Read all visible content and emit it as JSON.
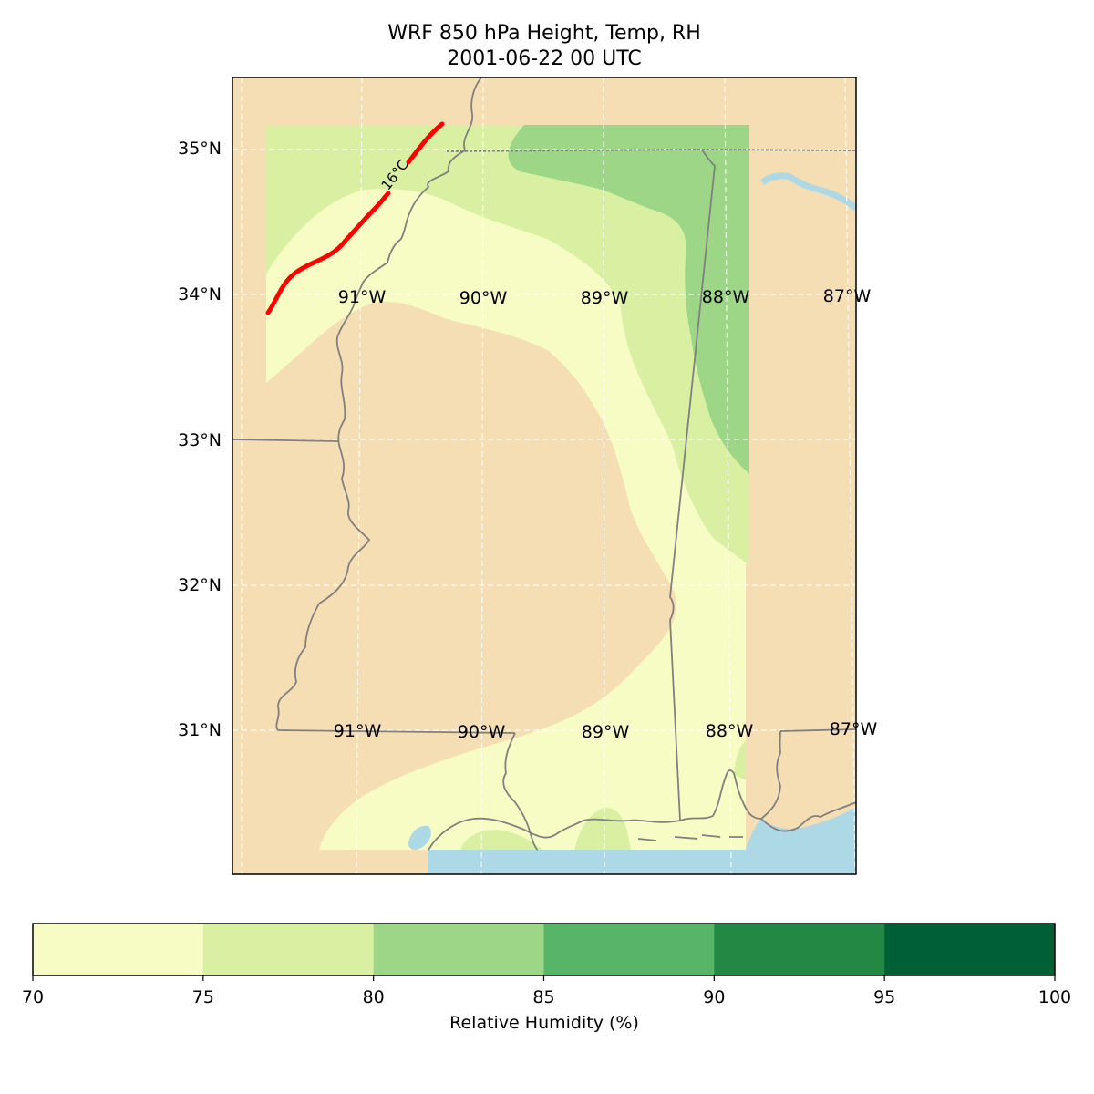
{
  "title": {
    "line1": "WRF 850 hPa Height, Temp, RH",
    "line2": "2001-06-22 00 UTC"
  },
  "map": {
    "lat_labels": [
      "35°N",
      "34°N",
      "33°N",
      "32°N",
      "31°N"
    ],
    "lon_labels_upper": [
      "91°W",
      "90°W",
      "89°W",
      "88°W",
      "87°W"
    ],
    "lon_labels_lower": [
      "91°W",
      "90°W",
      "89°W",
      "88°W",
      "87°W"
    ],
    "contour_label": "16°C",
    "colors": {
      "land": "#f5deb3",
      "water": "#add8e6",
      "rh_70_75": "#f7fcc4",
      "rh_75_80": "#d9f0a3",
      "rh_80_85": "#9dd686",
      "temp_contour": "#ff0000",
      "borders": "#808080"
    }
  },
  "colorbar": {
    "label": "Relative Humidity (%)",
    "ticks": [
      "70",
      "75",
      "80",
      "85",
      "90",
      "95",
      "100"
    ],
    "colors": [
      "#f7fcc4",
      "#d9f0a3",
      "#9dd686",
      "#56b567",
      "#228843",
      "#005f35"
    ]
  }
}
